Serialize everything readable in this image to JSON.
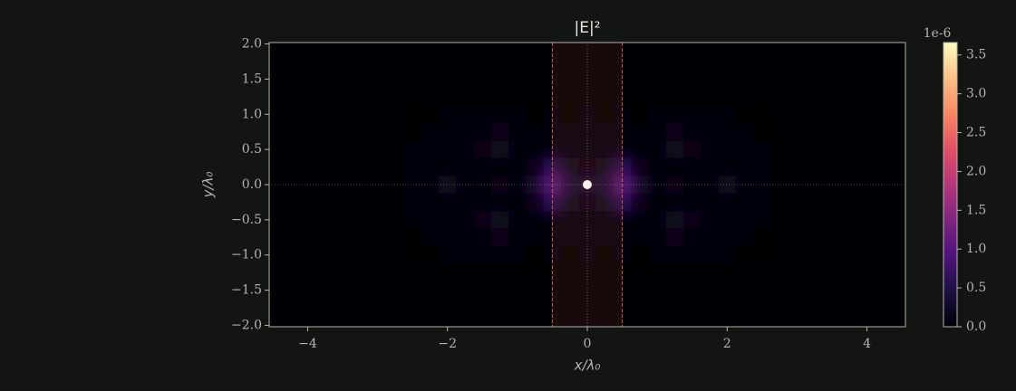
{
  "chart_data": {
    "type": "heatmap",
    "title": "|E|²",
    "xlabel": "x/λ₀",
    "ylabel": "y/λ₀",
    "colormap": "magma",
    "colorbar_offset": "1e-6",
    "xlim": [
      -4.55,
      4.55
    ],
    "ylim": [
      -2.02,
      2.02
    ],
    "clim": [
      0,
      3.66
    ],
    "xticks": [
      {
        "value": -4,
        "label": "−4"
      },
      {
        "value": -2,
        "label": "−2"
      },
      0,
      2,
      4
    ],
    "yticks": [
      {
        "value": -2,
        "label": "−2.0"
      },
      {
        "value": -1.5,
        "label": "−1.5"
      },
      {
        "value": -1,
        "label": "−1.0"
      },
      {
        "value": -0.5,
        "label": "−0.5"
      },
      {
        "value": 0,
        "label": "0.0"
      },
      {
        "value": 0.5,
        "label": "0.5"
      },
      {
        "value": 1,
        "label": "1.0"
      },
      {
        "value": 1.5,
        "label": "1.5"
      },
      {
        "value": 2,
        "label": "2.0"
      }
    ],
    "cticks": [
      {
        "value": 0,
        "label": "0.0"
      },
      0.5,
      {
        "value": 1,
        "label": "1.0"
      },
      1.5,
      {
        "value": 2,
        "label": "2.0"
      },
      2.5,
      {
        "value": 3,
        "label": "3.0"
      },
      3.5
    ],
    "slab_x": [
      -0.5,
      0.5
    ],
    "source_xy": [
      0,
      0
    ],
    "x": [
      -2.5,
      -2.25,
      -2,
      -1.75,
      -1.5,
      -1.25,
      -1,
      -0.75,
      -0.5,
      -0.25,
      0,
      0.25,
      0.5,
      0.75,
      1,
      1.25,
      1.5,
      1.75,
      2,
      2.25,
      2.5
    ],
    "y": [
      1,
      0.75,
      0.5,
      0.25,
      0,
      -0.25,
      -0.5,
      -0.75,
      -1
    ],
    "z": [
      [
        0,
        0.01,
        0.02,
        0.03,
        0.05,
        0.05,
        0.02,
        0.01,
        0.02,
        0.01,
        0.05,
        0.01,
        0.02,
        0.01,
        0.02,
        0.05,
        0.05,
        0.03,
        0.02,
        0.01,
        0
      ],
      [
        0.01,
        0.02,
        0.03,
        0.05,
        0.1,
        0.15,
        0.05,
        0.03,
        0.05,
        0.03,
        0.1,
        0.03,
        0.05,
        0.03,
        0.05,
        0.15,
        0.1,
        0.05,
        0.03,
        0.02,
        0.01
      ],
      [
        0.02,
        0.03,
        0.05,
        0.1,
        0.15,
        0.2,
        0.1,
        0.05,
        0.1,
        0.05,
        0.1,
        0.05,
        0.1,
        0.05,
        0.1,
        0.2,
        0.15,
        0.1,
        0.05,
        0.03,
        0.02
      ],
      [
        0.03,
        0.05,
        0.1,
        0.05,
        0.05,
        0.1,
        0.05,
        0.15,
        0.6,
        0.2,
        0.15,
        0.2,
        0.6,
        0.15,
        0.05,
        0.1,
        0.05,
        0.05,
        0.1,
        0.05,
        0.03
      ],
      [
        0.05,
        0.1,
        0.2,
        0.1,
        0.05,
        0.15,
        0.1,
        0.3,
        1.0,
        0.4,
        0.3,
        0.4,
        1.0,
        0.3,
        0.1,
        0.15,
        0.05,
        0.1,
        0.2,
        0.1,
        0.05
      ],
      [
        0.03,
        0.05,
        0.1,
        0.05,
        0.05,
        0.1,
        0.05,
        0.15,
        0.6,
        0.2,
        0.15,
        0.2,
        0.6,
        0.15,
        0.05,
        0.1,
        0.05,
        0.05,
        0.1,
        0.05,
        0.03
      ],
      [
        0.02,
        0.03,
        0.05,
        0.1,
        0.15,
        0.2,
        0.1,
        0.05,
        0.1,
        0.05,
        0.1,
        0.05,
        0.1,
        0.05,
        0.1,
        0.2,
        0.15,
        0.1,
        0.05,
        0.03,
        0.02
      ],
      [
        0.01,
        0.02,
        0.03,
        0.05,
        0.1,
        0.15,
        0.05,
        0.03,
        0.05,
        0.03,
        0.1,
        0.03,
        0.05,
        0.03,
        0.05,
        0.15,
        0.1,
        0.05,
        0.03,
        0.02,
        0.01
      ],
      [
        0,
        0.01,
        0.02,
        0.03,
        0.05,
        0.05,
        0.02,
        0.01,
        0.02,
        0.01,
        0.05,
        0.01,
        0.02,
        0.01,
        0.02,
        0.05,
        0.05,
        0.03,
        0.02,
        0.01,
        0
      ]
    ]
  }
}
